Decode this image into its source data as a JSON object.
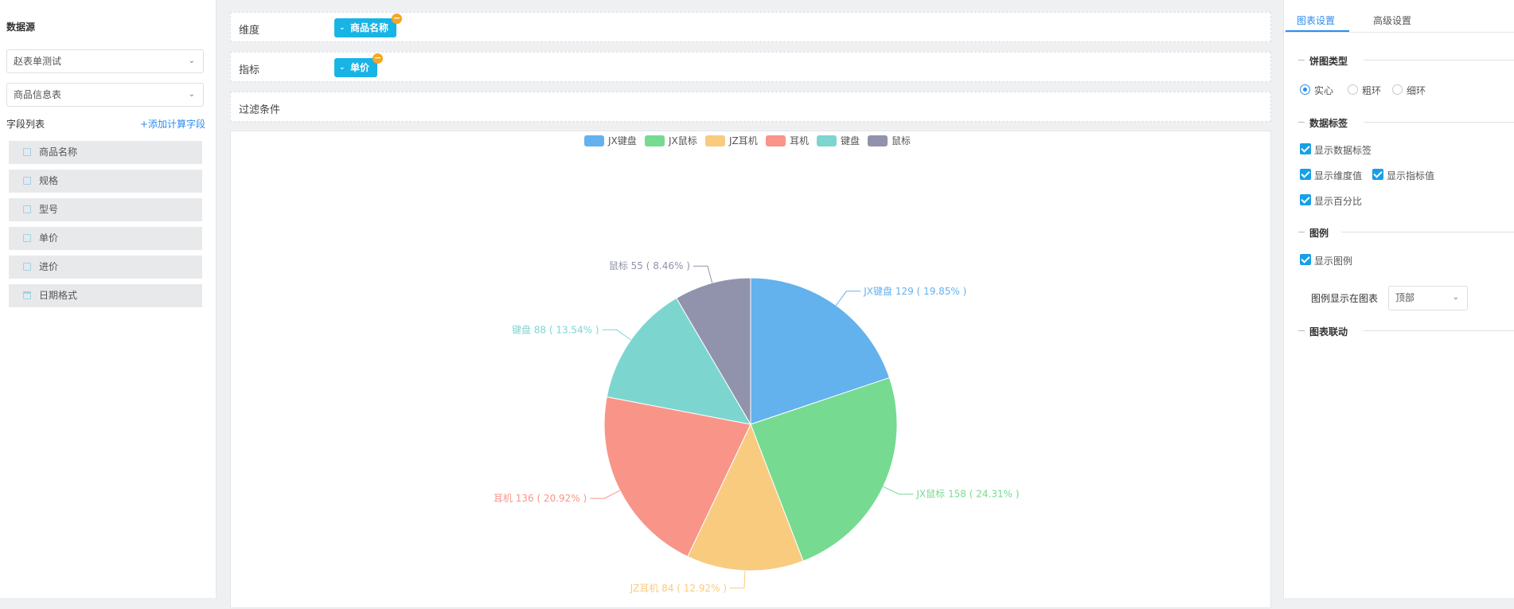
{
  "left": {
    "title": "数据源",
    "datasource": "赵表单测试",
    "table": "商品信息表",
    "fields_label": "字段列表",
    "add_field": "+添加计算字段",
    "fields": [
      "商品名称",
      "规格",
      "型号",
      "单价",
      "进价",
      "日期格式"
    ]
  },
  "center": {
    "dimension_label": "维度",
    "dimension_tag": "商品名称",
    "metric_label": "指标",
    "metric_tag": "单价",
    "filter_label": "过滤条件"
  },
  "right": {
    "tabs": [
      "图表设置",
      "高级设置"
    ],
    "pie_type_title": "饼图类型",
    "pie_types": [
      "实心",
      "粗环",
      "细环"
    ],
    "selected_pie_type": "实心",
    "data_label_title": "数据标签",
    "show_data_label": "显示数据标签",
    "show_dim_value": "显示维度值",
    "show_metric_value": "显示指标值",
    "show_percent": "显示百分比",
    "legend_title": "图例",
    "show_legend": "显示图例",
    "legend_pos_label": "图例显示在图表",
    "legend_pos_value": "顶部",
    "linkage_title": "图表联动"
  },
  "colors": {
    "accent": "#2d8cf0",
    "tag": "#18b4e6",
    "tag_remove": "#f5a623"
  },
  "chart_data": {
    "type": "pie",
    "legend_position": "top",
    "categories": [
      "JX键盘",
      "JX鼠标",
      "JZ耳机",
      "耳机",
      "键盘",
      "鼠标"
    ],
    "values": [
      129,
      158,
      84,
      136,
      88,
      55
    ],
    "percents": [
      "19.85%",
      "24.31%",
      "12.92%",
      "20.92%",
      "13.54%",
      "8.46%"
    ],
    "colors": [
      "#63b2ee",
      "#76da91",
      "#f8cb7f",
      "#f89588",
      "#7cd6cf",
      "#9192ab"
    ]
  }
}
